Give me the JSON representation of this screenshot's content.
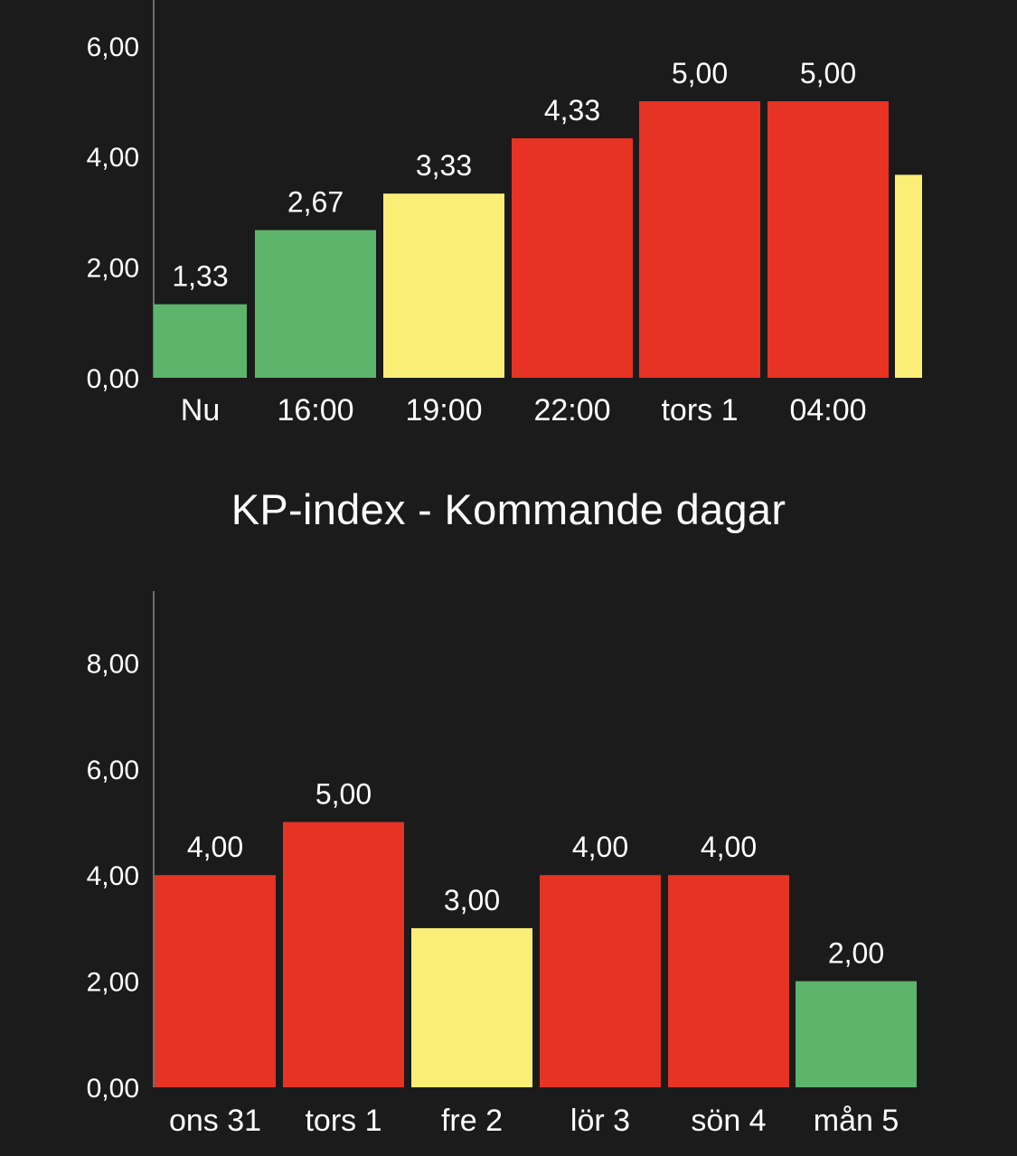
{
  "colors": {
    "background": "#1b1b1b",
    "green": "#5cb56b",
    "yellow": "#fbee76",
    "red": "#e63323",
    "axis": "#8a8a8a",
    "text": "#ffffff"
  },
  "section_title": "KP-index - Kommande dagar",
  "chart_data": [
    {
      "type": "bar",
      "categories": [
        "Nu",
        "16:00",
        "19:00",
        "22:00",
        "tors 1",
        "04:00",
        ""
      ],
      "values": [
        1.33,
        2.67,
        3.33,
        4.33,
        5.0,
        5.0,
        3.67
      ],
      "value_labels": [
        "1,33",
        "2,67",
        "3,33",
        "4,33",
        "5,00",
        "5,00",
        ""
      ],
      "bar_colors": [
        "green",
        "green",
        "yellow",
        "red",
        "red",
        "red",
        "yellow"
      ],
      "yticks": [
        "0,00",
        "2,00",
        "4,00",
        "6,00"
      ],
      "ytick_values": [
        0,
        2,
        4,
        6
      ],
      "ylim": [
        0,
        6.5
      ],
      "grid": false,
      "title": "",
      "xlabel": "",
      "ylabel": ""
    },
    {
      "type": "bar",
      "title": "KP-index - Kommande dagar",
      "categories": [
        "ons 31",
        "tors 1",
        "fre 2",
        "lör 3",
        "sön 4",
        "mån 5"
      ],
      "values": [
        4.0,
        5.0,
        3.0,
        4.0,
        4.0,
        2.0
      ],
      "value_labels": [
        "4,00",
        "5,00",
        "3,00",
        "4,00",
        "4,00",
        "2,00"
      ],
      "bar_colors": [
        "red",
        "red",
        "yellow",
        "red",
        "red",
        "green"
      ],
      "yticks": [
        "0,00",
        "2,00",
        "4,00",
        "6,00",
        "8,00"
      ],
      "ytick_values": [
        0,
        2,
        4,
        6,
        8
      ],
      "ylim": [
        0,
        9
      ],
      "grid": false,
      "xlabel": "",
      "ylabel": ""
    }
  ]
}
